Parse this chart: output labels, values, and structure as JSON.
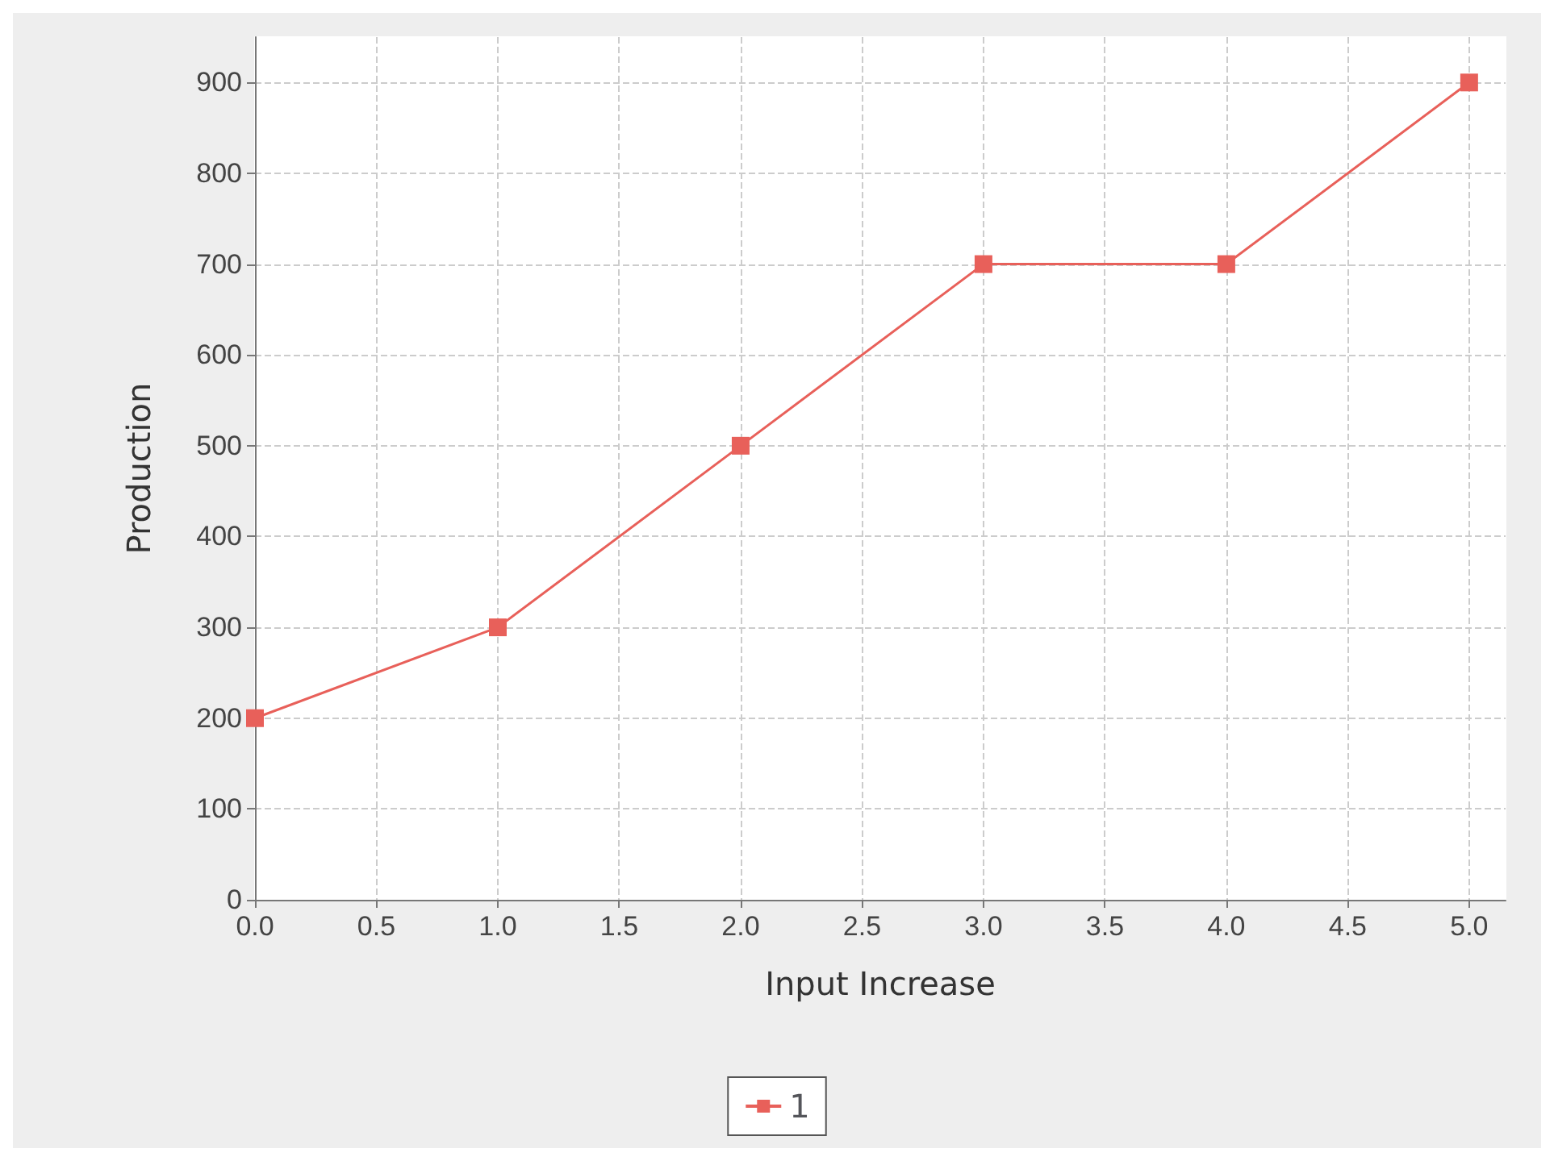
{
  "chart_data": {
    "type": "line",
    "xlabel": "Input Increase",
    "ylabel": "Production",
    "x": [
      0,
      1,
      2,
      3,
      4,
      5
    ],
    "series": [
      {
        "name": "1",
        "color": "#e8605a",
        "values": [
          200,
          300,
          500,
          700,
          700,
          900
        ]
      }
    ],
    "xlim": [
      0,
      5.15
    ],
    "xticks": [
      {
        "value": 0,
        "label": "0.0"
      },
      {
        "value": 0.5,
        "label": "0.5"
      },
      {
        "value": 1,
        "label": "1.0"
      },
      {
        "value": 1.5,
        "label": "1.5"
      },
      {
        "value": 2,
        "label": "2.0"
      },
      {
        "value": 2.5,
        "label": "2.5"
      },
      {
        "value": 3,
        "label": "3.0"
      },
      {
        "value": 3.5,
        "label": "3.5"
      },
      {
        "value": 4,
        "label": "4.0"
      },
      {
        "value": 4.5,
        "label": "4.5"
      },
      {
        "value": 5,
        "label": "5.0"
      }
    ],
    "ylim": [
      0,
      950
    ],
    "yticks": [
      0,
      100,
      200,
      300,
      400,
      500,
      600,
      700,
      800,
      900
    ],
    "grid": true,
    "legend": "bottom",
    "marker": "square",
    "line_style": "solid"
  }
}
